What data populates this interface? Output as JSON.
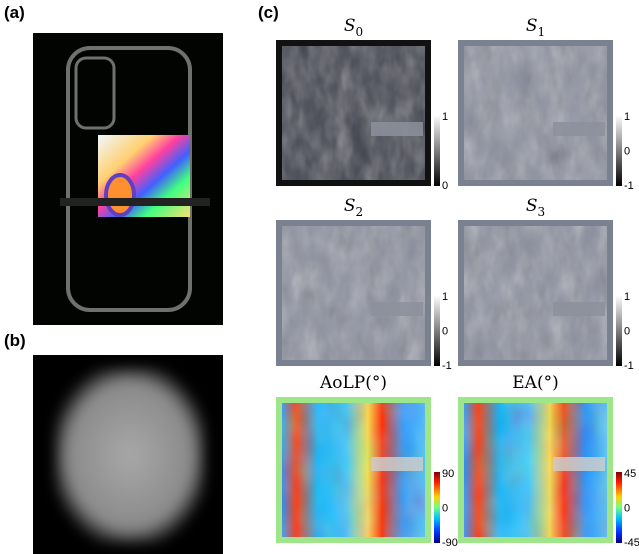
{
  "panels": {
    "a": {
      "label": "(a)"
    },
    "b": {
      "label": "(b)"
    },
    "c": {
      "label": "(c)",
      "maps": [
        {
          "symbol": "S",
          "index": "0",
          "colorbar_ticks": [
            "1",
            "0"
          ]
        },
        {
          "symbol": "S",
          "index": "1",
          "colorbar_ticks": [
            "1",
            "0",
            "-1"
          ]
        },
        {
          "symbol": "S",
          "index": "2",
          "colorbar_ticks": [
            "1",
            "0",
            "-1"
          ]
        },
        {
          "symbol": "S",
          "index": "3",
          "colorbar_ticks": [
            "1",
            "0",
            "-1"
          ]
        },
        {
          "title": "AoLP(°)",
          "colorbar_ticks": [
            "90",
            "0",
            "-90"
          ]
        },
        {
          "title": "EA(°)",
          "colorbar_ticks": [
            "45",
            "0",
            "-45"
          ]
        }
      ]
    }
  }
}
